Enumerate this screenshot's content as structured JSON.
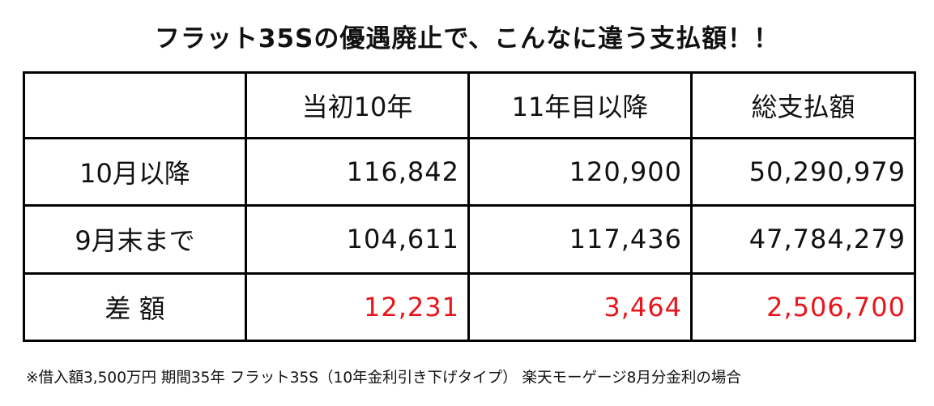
{
  "title": "フラット35Sの優遇廃止で、こんなに違う支払額！！",
  "table": {
    "header": [
      "当初10年",
      "11年目以降",
      "総支払額"
    ],
    "rows": [
      {
        "label": "10月以降",
        "cells": [
          "116,842",
          "120,900",
          "50,290,979"
        ]
      },
      {
        "label": "9月末まで",
        "cells": [
          "104,611",
          "117,436",
          "47,784,279"
        ]
      },
      {
        "label": "差 額",
        "cells": [
          "12,231",
          "3,464",
          "2,506,700"
        ]
      }
    ]
  },
  "footnote": "※借入額3,500万円 期間35年 フラット35S（10年金利引き下げタイプ） 楽天モーゲージ8月分金利の場合"
}
